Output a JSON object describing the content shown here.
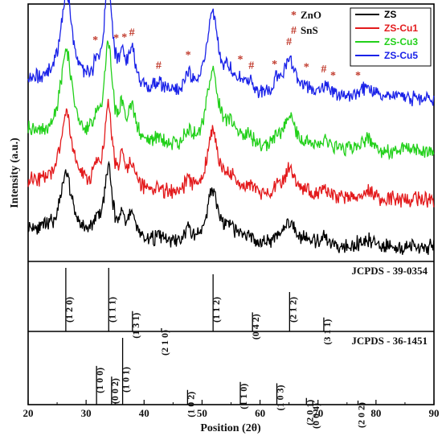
{
  "chart_data": {
    "type": "line",
    "xlabel": "Position (2θ)",
    "ylabel": "Intensity (a.u.)",
    "xlim": [
      20,
      90
    ],
    "x_ticks": [
      "20",
      "30",
      "40",
      "50",
      "60",
      "70",
      "80",
      "90"
    ],
    "y_tick_labels": false,
    "legend_position": "top-right",
    "series": [
      {
        "name": "ZS",
        "color": "#000000",
        "offset": 0.0,
        "base": 0.08,
        "scale": 0.7,
        "noise_seed": 11
      },
      {
        "name": "ZS-Cu1",
        "color": "#e31a1c",
        "offset": 0.62,
        "base": 0.08,
        "scale": 0.85,
        "noise_seed": 23
      },
      {
        "name": "ZS-Cu3",
        "color": "#22d01a",
        "offset": 1.25,
        "base": 0.08,
        "scale": 1.0,
        "noise_seed": 37
      },
      {
        "name": "ZS-Cu5",
        "color": "#1a22e8",
        "offset": 1.95,
        "base": 0.08,
        "scale": 1.05,
        "noise_seed": 53
      }
    ],
    "peaks": [
      {
        "x": 26.6,
        "h": 1.15,
        "w": 1.2
      },
      {
        "x": 31.8,
        "h": 0.22,
        "w": 0.5
      },
      {
        "x": 33.8,
        "h": 1.3,
        "w": 0.8
      },
      {
        "x": 36.2,
        "h": 0.35,
        "w": 0.5
      },
      {
        "x": 37.9,
        "h": 0.45,
        "w": 0.9
      },
      {
        "x": 42.5,
        "h": 0.1,
        "w": 1.0
      },
      {
        "x": 47.6,
        "h": 0.2,
        "w": 0.7
      },
      {
        "x": 51.8,
        "h": 1.0,
        "w": 1.2
      },
      {
        "x": 54.8,
        "h": 0.25,
        "w": 1.0
      },
      {
        "x": 56.6,
        "h": 0.1,
        "w": 0.6
      },
      {
        "x": 58.2,
        "h": 0.12,
        "w": 0.8
      },
      {
        "x": 62.9,
        "h": 0.12,
        "w": 0.8
      },
      {
        "x": 65.1,
        "h": 0.45,
        "w": 1.2
      },
      {
        "x": 68.0,
        "h": 0.08,
        "w": 0.6
      },
      {
        "x": 71.2,
        "h": 0.12,
        "w": 1.0
      },
      {
        "x": 78.5,
        "h": 0.15,
        "w": 1.2
      }
    ],
    "markers": [
      {
        "symbol": "#",
        "phase": "SnS",
        "x": 26.6
      },
      {
        "symbol": "#",
        "phase": "SnS",
        "x": 33.8
      },
      {
        "symbol": "*",
        "phase": "ZnO",
        "x": 35.2
      },
      {
        "symbol": "*",
        "phase": "ZnO",
        "x": 31.6
      },
      {
        "symbol": "*",
        "phase": "ZnO",
        "x": 36.6
      },
      {
        "symbol": "#",
        "phase": "SnS",
        "x": 37.9
      },
      {
        "symbol": "#",
        "phase": "SnS",
        "x": 42.5
      },
      {
        "symbol": "*",
        "phase": "ZnO",
        "x": 47.6
      },
      {
        "symbol": "#",
        "phase": "SnS",
        "x": 51.8
      },
      {
        "symbol": "*",
        "phase": "ZnO",
        "x": 56.6
      },
      {
        "symbol": "#",
        "phase": "SnS",
        "x": 58.5
      },
      {
        "symbol": "*",
        "phase": "ZnO",
        "x": 62.5
      },
      {
        "symbol": "#",
        "phase": "SnS",
        "x": 65.0
      },
      {
        "symbol": "*",
        "phase": "ZnO",
        "x": 68.0
      },
      {
        "symbol": "#",
        "phase": "SnS",
        "x": 71.0
      },
      {
        "symbol": "*",
        "phase": "ZnO",
        "x": 72.6
      },
      {
        "symbol": "*",
        "phase": "ZnO",
        "x": 76.9
      }
    ],
    "phase_legend": [
      {
        "symbol": "*",
        "label": "ZnO"
      },
      {
        "symbol": "#",
        "label": "SnS"
      }
    ],
    "reference_panels": [
      {
        "title": "JCPDS - 39-0354",
        "lines": [
          {
            "x": 26.5,
            "h": 1.0,
            "label": "(1 2 0)"
          },
          {
            "x": 33.9,
            "h": 1.0,
            "label": "(1 1 1)"
          },
          {
            "x": 38.0,
            "h": 0.32,
            "label": "(1 3 1)"
          },
          {
            "x": 43.0,
            "h": 0.05,
            "label": "(2 1 0)"
          },
          {
            "x": 51.9,
            "h": 0.9,
            "label": "(1 1 2)"
          },
          {
            "x": 58.7,
            "h": 0.3,
            "label": "(0 4 2)"
          },
          {
            "x": 65.1,
            "h": 0.62,
            "label": "(2 1 2)"
          },
          {
            "x": 71.0,
            "h": 0.22,
            "label": "(3 1 1)"
          }
        ]
      },
      {
        "title": "JCPDS - 36-1451",
        "lines": [
          {
            "x": 31.8,
            "h": 0.58,
            "label": "(1 0 0)"
          },
          {
            "x": 34.4,
            "h": 0.42,
            "label": "(0 0 2)"
          },
          {
            "x": 36.3,
            "h": 1.0,
            "label": "(1 0 1)"
          },
          {
            "x": 47.5,
            "h": 0.22,
            "label": "(1 0 2)"
          },
          {
            "x": 56.6,
            "h": 0.34,
            "label": "(1 1 0)"
          },
          {
            "x": 62.9,
            "h": 0.32,
            "label": "(1 0 3)"
          },
          {
            "x": 68.0,
            "h": 0.1,
            "label": "(2 0 1)"
          },
          {
            "x": 69.1,
            "h": 0.04,
            "label": "(0 0 4)"
          },
          {
            "x": 76.9,
            "h": 0.06,
            "label": "(2 0 2)"
          }
        ]
      }
    ],
    "marker_color": "#c0392b"
  }
}
